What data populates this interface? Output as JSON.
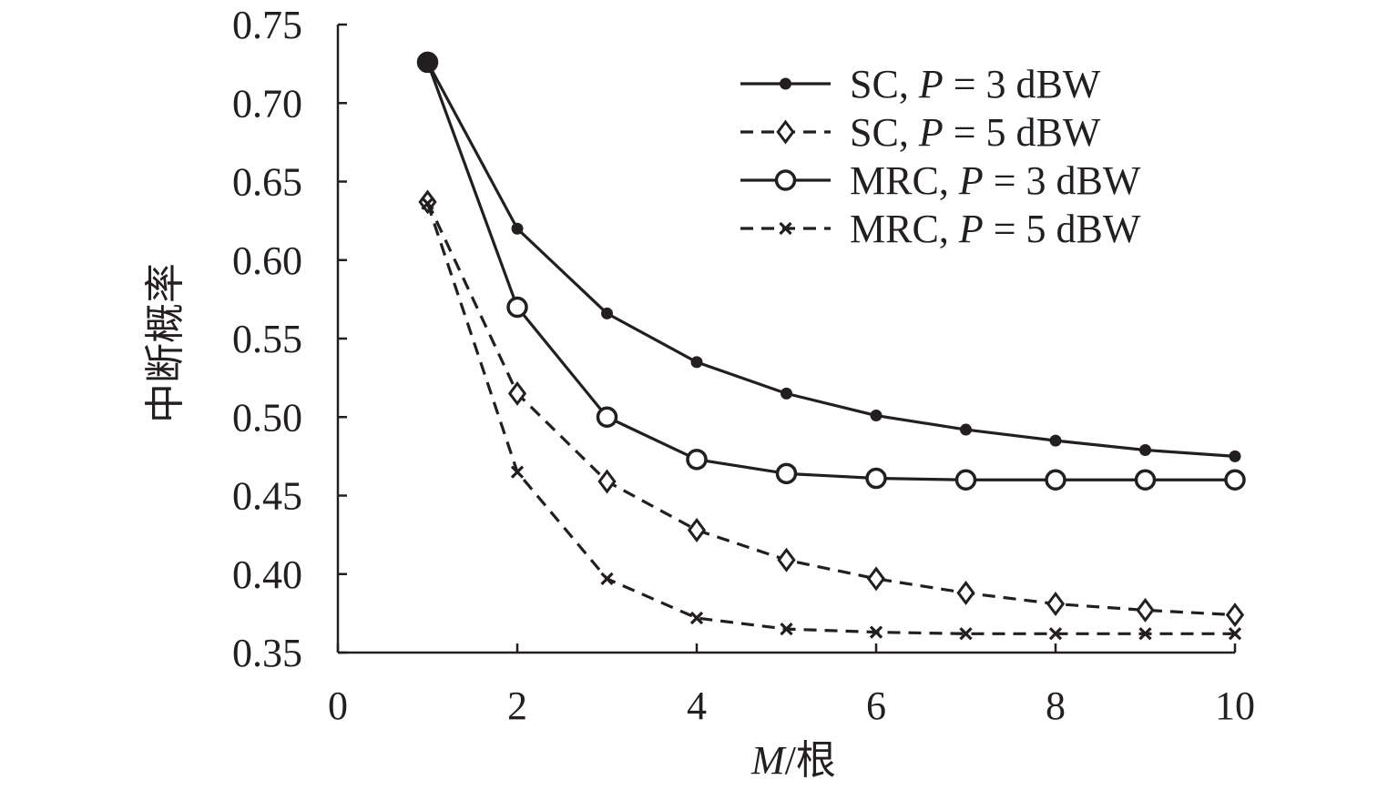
{
  "chart_data": {
    "type": "line",
    "xlabel": {
      "italic": "M",
      "rest": "/根"
    },
    "ylabel": "中断概率",
    "xlim": [
      0,
      10
    ],
    "ylim": [
      0.35,
      0.75
    ],
    "xticks": [
      0,
      2,
      4,
      6,
      8,
      10
    ],
    "xtick_labels": [
      "0",
      "2",
      "4",
      "6",
      "8",
      "10"
    ],
    "yticks": [
      0.35,
      0.4,
      0.45,
      0.5,
      0.55,
      0.6,
      0.65,
      0.7,
      0.75
    ],
    "ytick_labels": [
      "0.35",
      "0.40",
      "0.45",
      "0.50",
      "0.55",
      "0.60",
      "0.65",
      "0.70",
      "0.75"
    ],
    "grid": false,
    "legend_position": "top-right",
    "x": [
      1,
      2,
      3,
      4,
      5,
      6,
      7,
      8,
      9,
      10
    ],
    "series": [
      {
        "legend_prefix": "SC, ",
        "legend_italic": "P",
        "legend_suffix": " = 3 dBW",
        "line": "solid",
        "marker": "dot",
        "color": "#231f20",
        "values": [
          0.726,
          0.62,
          0.566,
          0.535,
          0.515,
          0.501,
          0.492,
          0.485,
          0.479,
          0.475
        ]
      },
      {
        "legend_prefix": "SC, ",
        "legend_italic": "P",
        "legend_suffix": " = 5 dBW",
        "line": "dashed",
        "marker": "diamond",
        "color": "#231f20",
        "values": [
          0.637,
          0.515,
          0.459,
          0.428,
          0.409,
          0.397,
          0.388,
          0.381,
          0.377,
          0.374
        ]
      },
      {
        "legend_prefix": "MRC, ",
        "legend_italic": "P",
        "legend_suffix": " = 3 dBW",
        "line": "solid",
        "marker": "circle",
        "color": "#231f20",
        "values": [
          0.726,
          0.57,
          0.5,
          0.473,
          0.464,
          0.461,
          0.46,
          0.46,
          0.46,
          0.46
        ]
      },
      {
        "legend_prefix": "MRC, ",
        "legend_italic": "P",
        "legend_suffix": " = 5 dBW",
        "line": "dashed",
        "marker": "x",
        "color": "#231f20",
        "values": [
          0.636,
          0.465,
          0.397,
          0.372,
          0.365,
          0.363,
          0.362,
          0.362,
          0.362,
          0.362
        ]
      }
    ]
  }
}
